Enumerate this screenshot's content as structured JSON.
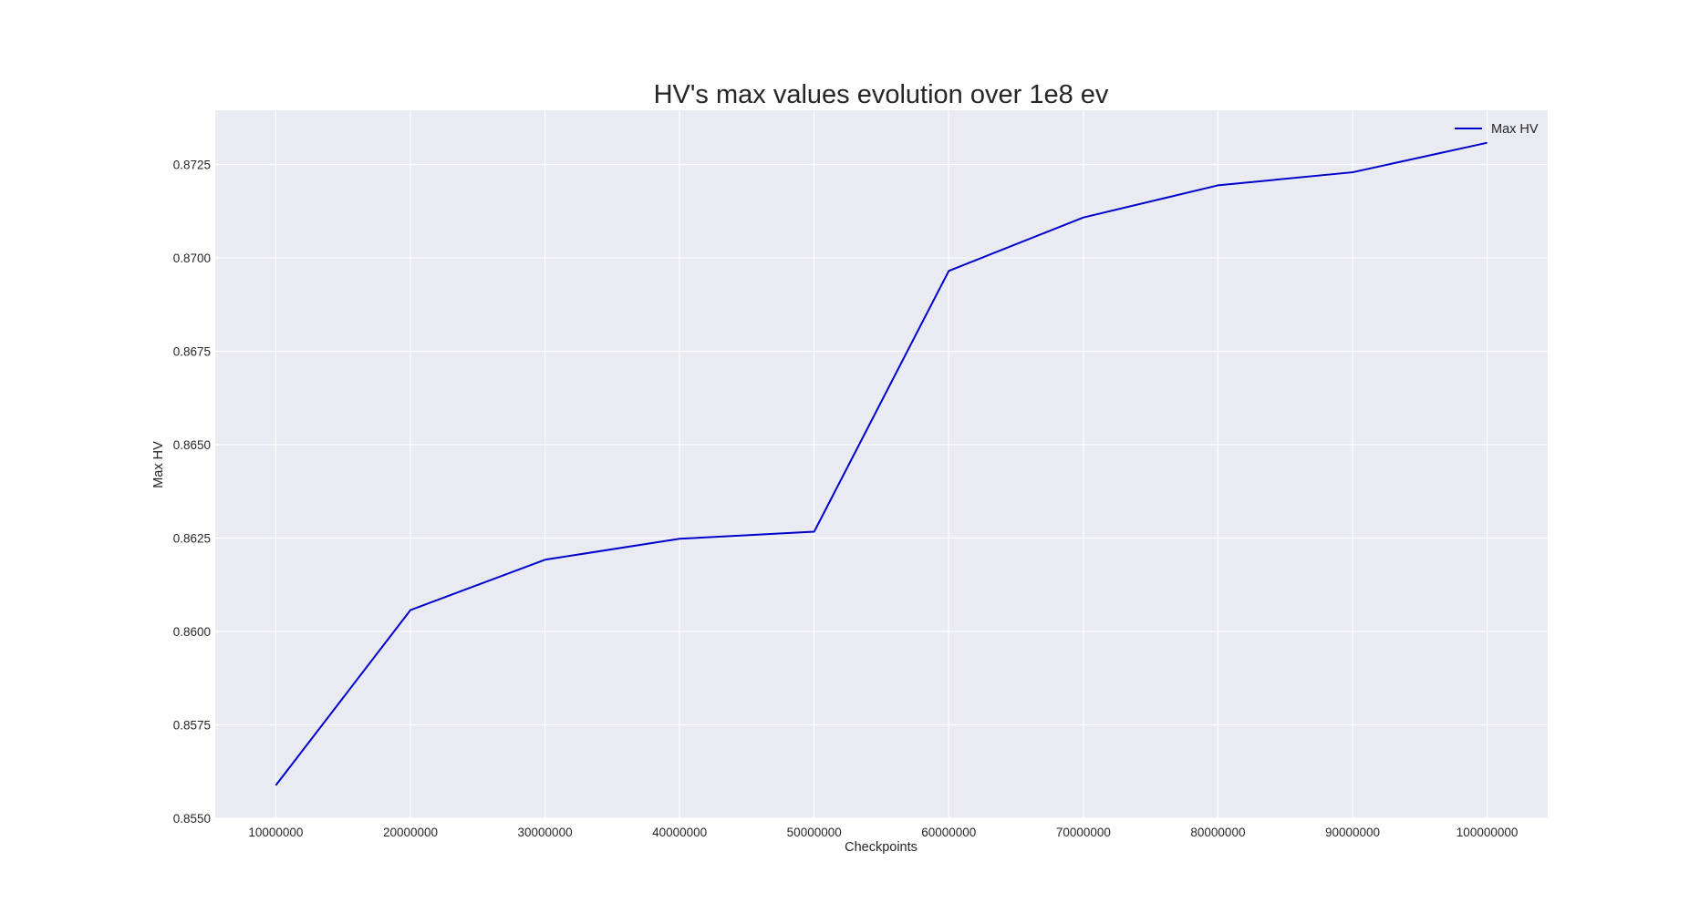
{
  "chart_data": {
    "type": "line",
    "title": "HV's max values evolution over 1e8 ev",
    "xlabel": "Checkpoints",
    "ylabel": "Max HV",
    "x": [
      10000000,
      20000000,
      30000000,
      40000000,
      50000000,
      60000000,
      70000000,
      80000000,
      90000000,
      100000000
    ],
    "x_tick_labels": [
      "10000000",
      "20000000",
      "30000000",
      "40000000",
      "50000000",
      "60000000",
      "70000000",
      "80000000",
      "90000000",
      "100000000"
    ],
    "series": [
      {
        "name": "Max HV",
        "color": "#0000cc",
        "values": [
          0.85588,
          0.86057,
          0.86192,
          0.86248,
          0.86267,
          0.86965,
          0.87108,
          0.87194,
          0.87229,
          0.87308
        ]
      }
    ],
    "y_ticks": [
      0.855,
      0.8575,
      0.86,
      0.8625,
      0.865,
      0.8675,
      0.87,
      0.8725
    ],
    "y_tick_labels": [
      "0.8550",
      "0.8575",
      "0.8600",
      "0.8625",
      "0.8650",
      "0.8675",
      "0.8700",
      "0.8725"
    ],
    "ylim": [
      0.855,
      0.87395
    ],
    "xlim": [
      5500000,
      104500000
    ],
    "grid": true,
    "legend_position": "top-right"
  }
}
